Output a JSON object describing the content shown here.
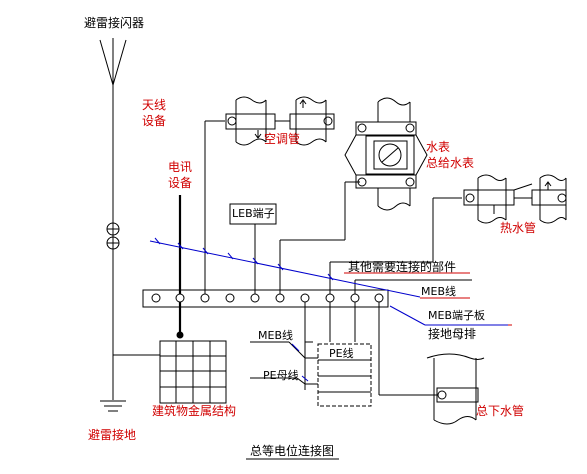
{
  "diagram": {
    "title": "总等电位连接图",
    "labels": {
      "lightning_rod": "避雷接闪器",
      "antenna_equipment": [
        "天线",
        "设备"
      ],
      "telecom_equipment": [
        "电讯",
        "设备"
      ],
      "leb_terminal": "LEB端子",
      "ac_pipe": "空调管",
      "water_meter": [
        "水表",
        "总给水表"
      ],
      "hot_water_pipe": "热水管",
      "other_parts": "其他需要连接的部件",
      "meb_line_right": "MEB线",
      "meb_terminal_board": [
        "MEB端子板",
        "接地母排"
      ],
      "meb_line_left": "MEB线",
      "pe_line": "PE线",
      "pe_busbar": "PE母线",
      "building_metal": "建筑物金属结构",
      "lightning_ground": "避雷接地",
      "drain_pipe": "总下水管"
    },
    "colors": {
      "line": "#000000",
      "meb_line": "#0000cc",
      "label": "#d00000"
    }
  }
}
